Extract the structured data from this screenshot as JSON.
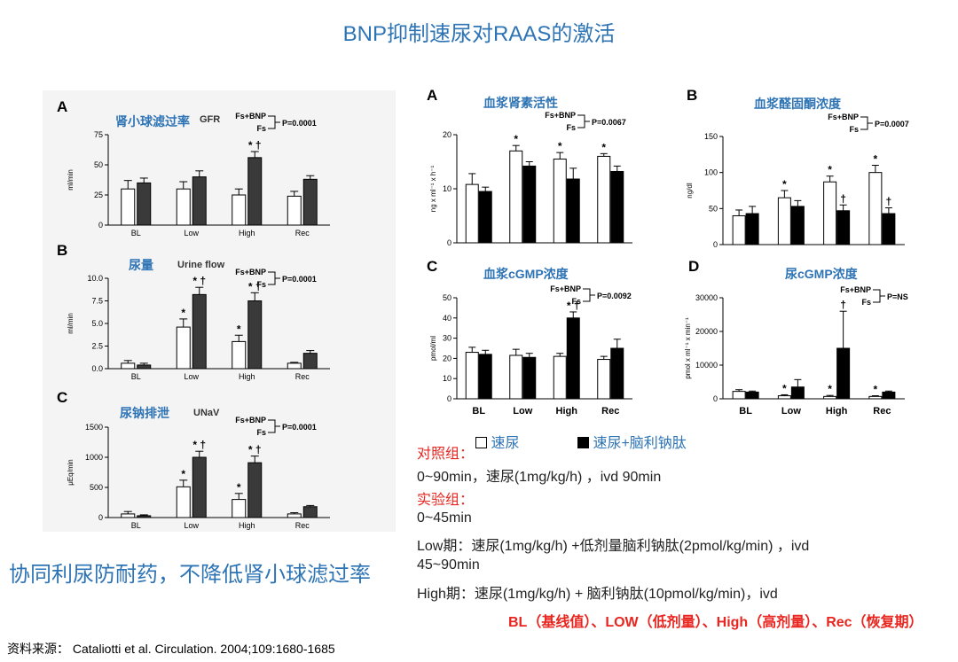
{
  "page": {
    "title": "BNP抑制速尿对RAAS的激活",
    "conclusion": "协同利尿防耐药，不降低肾小球滤过率",
    "source": "资料来源： Cataliotti et al. Circulation. 2004;109:1680-1685",
    "legend": {
      "white_label": "速尿",
      "black_label": "速尿+脑利钠肽"
    },
    "protocol": {
      "control_heading": "对照组：",
      "control_line": "0~90min，速尿(1mg/kg/h) ，ivd 90min",
      "exp_heading": "实验组：",
      "exp_line1": "0~45min",
      "exp_line2": "Low期：速尿(1mg/kg/h) +低剂量脑利钠肽(2pmol/kg/min) ，ivd",
      "exp_line3": "45~90min",
      "exp_line4": "High期：速尿(1mg/kg/h) + 脑利钠肽(10pmol/kg/min)，ivd"
    },
    "footer": "BL（基线值）、LOW（低剂量）、High（高剂量）、Rec（恢复期）"
  },
  "colors": {
    "accent_blue": "#2e74b5",
    "red": "#e8251f",
    "bar_dark_left": "#3a3a3a",
    "bar_black": "#000000"
  },
  "chart_data": [
    {
      "id": "L-A",
      "type": "bar",
      "panel": "A",
      "title": "肾小球滤过率",
      "subtitle": "GFR",
      "categories": [
        "BL",
        "Low",
        "High",
        "Rec"
      ],
      "series": [
        {
          "name": "Fs",
          "values": [
            30,
            30,
            25,
            24
          ],
          "errors": [
            7,
            6,
            5,
            4
          ]
        },
        {
          "name": "Fs+BNP",
          "values": [
            35,
            40,
            56,
            38
          ],
          "errors": [
            4,
            5,
            5,
            3
          ]
        }
      ],
      "ylabel": "ml/min",
      "ylim": [
        0,
        75
      ],
      "yticks": [
        0,
        25,
        50,
        75
      ],
      "ytick_labels": [
        "0",
        "25",
        "50",
        "75"
      ],
      "legend_top": "Fs+BNP",
      "legend_bottom": "Fs",
      "pvalue": "P=0.0001",
      "annotations": [
        {
          "cat": 2,
          "series": 1,
          "text": "* †"
        }
      ]
    },
    {
      "id": "L-B",
      "type": "bar",
      "panel": "B",
      "title": "尿量",
      "subtitle": "Urine flow",
      "categories": [
        "BL",
        "Low",
        "High",
        "Rec"
      ],
      "series": [
        {
          "name": "Fs",
          "values": [
            0.6,
            4.6,
            3.0,
            0.6
          ],
          "errors": [
            0.3,
            0.9,
            0.7,
            0.1
          ]
        },
        {
          "name": "Fs+BNP",
          "values": [
            0.4,
            8.2,
            7.5,
            1.7
          ],
          "errors": [
            0.2,
            0.8,
            0.9,
            0.3
          ]
        }
      ],
      "ylabel": "ml/min",
      "ylim": [
        0,
        10
      ],
      "yticks": [
        0,
        2.5,
        5,
        7.5,
        10
      ],
      "ytick_labels": [
        "0.0",
        "2.5",
        "5.0",
        "7.5",
        "10.0"
      ],
      "legend_top": "Fs+BNP",
      "legend_bottom": "Fs",
      "pvalue": "P=0.0001",
      "annotations": [
        {
          "cat": 1,
          "series": 0,
          "text": "*"
        },
        {
          "cat": 1,
          "series": 1,
          "text": "* †"
        },
        {
          "cat": 2,
          "series": 0,
          "text": "*"
        },
        {
          "cat": 2,
          "series": 1,
          "text": "* †"
        }
      ]
    },
    {
      "id": "L-C",
      "type": "bar",
      "panel": "C",
      "title": "尿钠排泄",
      "subtitle": "UNaV",
      "categories": [
        "BL",
        "Low",
        "High",
        "Rec"
      ],
      "series": [
        {
          "name": "Fs",
          "values": [
            60,
            510,
            300,
            60
          ],
          "errors": [
            40,
            110,
            100,
            20
          ]
        },
        {
          "name": "Fs+BNP",
          "values": [
            30,
            1000,
            910,
            180
          ],
          "errors": [
            15,
            100,
            110,
            20
          ]
        }
      ],
      "ylabel": "μEq/min",
      "ylim": [
        0,
        1500
      ],
      "yticks": [
        0,
        500,
        1000,
        1500
      ],
      "ytick_labels": [
        "0",
        "500",
        "1000",
        "1500"
      ],
      "legend_top": "Fs+BNP",
      "legend_bottom": "Fs",
      "pvalue": "P=0.0001",
      "annotations": [
        {
          "cat": 1,
          "series": 0,
          "text": "*"
        },
        {
          "cat": 1,
          "series": 1,
          "text": "* †"
        },
        {
          "cat": 2,
          "series": 0,
          "text": "*"
        },
        {
          "cat": 2,
          "series": 1,
          "text": "* †"
        }
      ]
    },
    {
      "id": "R-A",
      "type": "bar",
      "panel": "A",
      "title": "血浆肾素活性",
      "subtitle": "",
      "categories": [
        "",
        "",
        "",
        ""
      ],
      "series": [
        {
          "name": "Fs",
          "values": [
            10.8,
            17,
            15.5,
            16
          ],
          "errors": [
            2,
            1,
            1.2,
            0.5
          ]
        },
        {
          "name": "Fs+BNP",
          "values": [
            9.5,
            14.2,
            11.8,
            13.2
          ],
          "errors": [
            0.8,
            0.8,
            2,
            1
          ]
        }
      ],
      "ylabel": "ng x ml⁻¹ x h⁻¹",
      "ylim": [
        0,
        20
      ],
      "yticks": [
        0,
        10,
        20
      ],
      "ytick_labels": [
        "0",
        "10",
        "20"
      ],
      "legend_top": "Fs+BNP",
      "legend_bottom": "Fs",
      "pvalue": "P=0.0067",
      "annotations": [
        {
          "cat": 1,
          "series": 0,
          "text": "*"
        },
        {
          "cat": 2,
          "series": 0,
          "text": "*"
        },
        {
          "cat": 3,
          "series": 0,
          "text": "*"
        }
      ]
    },
    {
      "id": "R-B",
      "type": "bar",
      "panel": "B",
      "title": "血浆醛固酮浓度",
      "subtitle": "",
      "categories": [
        "",
        "",
        "",
        ""
      ],
      "series": [
        {
          "name": "Fs",
          "values": [
            40,
            65,
            87,
            100
          ],
          "errors": [
            8,
            10,
            8,
            10
          ]
        },
        {
          "name": "Fs+BNP",
          "values": [
            43,
            53,
            47,
            43
          ],
          "errors": [
            10,
            8,
            8,
            8
          ]
        }
      ],
      "ylabel": "ng/dl",
      "ylim": [
        0,
        150
      ],
      "yticks": [
        0,
        50,
        100,
        150
      ],
      "ytick_labels": [
        "0",
        "50",
        "100",
        "150"
      ],
      "legend_top": "Fs+BNP",
      "legend_bottom": "Fs",
      "pvalue": "P=0.0007",
      "annotations": [
        {
          "cat": 1,
          "series": 0,
          "text": "*"
        },
        {
          "cat": 2,
          "series": 0,
          "text": "*"
        },
        {
          "cat": 2,
          "series": 1,
          "text": "†"
        },
        {
          "cat": 3,
          "series": 0,
          "text": "*"
        },
        {
          "cat": 3,
          "series": 1,
          "text": "†"
        }
      ]
    },
    {
      "id": "R-C",
      "type": "bar",
      "panel": "C",
      "title": "血浆cGMP浓度",
      "subtitle": "",
      "categories": [
        "BL",
        "Low",
        "High",
        "Rec"
      ],
      "series": [
        {
          "name": "Fs",
          "values": [
            23,
            21.5,
            21,
            19.5
          ],
          "errors": [
            2.5,
            3,
            1.5,
            1.5
          ]
        },
        {
          "name": "Fs+BNP",
          "values": [
            22,
            20.5,
            40,
            25
          ],
          "errors": [
            2,
            2,
            3,
            4.5
          ]
        }
      ],
      "ylabel": "pmol/ml",
      "ylim": [
        0,
        50
      ],
      "yticks": [
        0,
        10,
        20,
        30,
        40,
        50
      ],
      "ytick_labels": [
        "0",
        "10",
        "20",
        "30",
        "40",
        "50"
      ],
      "legend_top": "Fs+BNP",
      "legend_bottom": "Fs",
      "pvalue": "P=0.0092",
      "annotations": [
        {
          "cat": 2,
          "series": 1,
          "text": "* †"
        }
      ]
    },
    {
      "id": "R-D",
      "type": "bar",
      "panel": "D",
      "title": "尿cGMP浓度",
      "subtitle": "",
      "categories": [
        "BL",
        "Low",
        "High",
        "Rec"
      ],
      "series": [
        {
          "name": "Fs",
          "values": [
            2200,
            900,
            700,
            700
          ],
          "errors": [
            500,
            300,
            300,
            200
          ]
        },
        {
          "name": "Fs+BNP",
          "values": [
            2000,
            3500,
            15000,
            2000
          ],
          "errors": [
            300,
            2200,
            11000,
            300
          ]
        }
      ],
      "ylabel": "pmol x ml⁻¹ x min⁻¹",
      "ylim": [
        0,
        30000
      ],
      "yticks": [
        0,
        10000,
        20000,
        30000
      ],
      "ytick_labels": [
        "0",
        "10000",
        "20000",
        "30000"
      ],
      "legend_top": "Fs+BNP",
      "legend_bottom": "Fs",
      "pvalue": "P=NS",
      "annotations": [
        {
          "cat": 1,
          "series": 0,
          "text": "*"
        },
        {
          "cat": 2,
          "series": 0,
          "text": "*"
        },
        {
          "cat": 2,
          "series": 1,
          "text": "†"
        },
        {
          "cat": 3,
          "series": 0,
          "text": "*"
        }
      ]
    }
  ]
}
